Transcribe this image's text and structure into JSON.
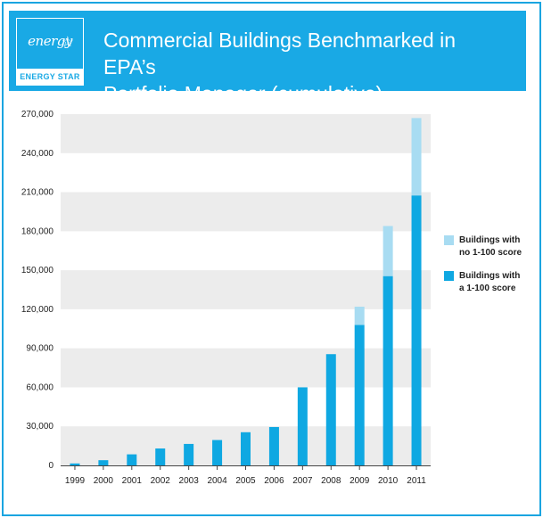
{
  "header": {
    "title_line1": "Commercial Buildings Benchmarked in EPA’s",
    "title_line2": "Portfolio Manager (cumulative)",
    "logo_script": "energy",
    "logo_band": "ENERGY STAR"
  },
  "colors": {
    "frame": "#1aa5e0",
    "header_bg": "#19a9e5",
    "series_scored": "#0fa8e2",
    "series_unscored": "#a8dcf2",
    "band": "#ececec"
  },
  "chart_data": {
    "type": "bar",
    "stacked": true,
    "categories": [
      "1999",
      "2000",
      "2001",
      "2002",
      "2003",
      "2004",
      "2005",
      "2006",
      "2007",
      "2008",
      "2009",
      "2010",
      "2011"
    ],
    "series": [
      {
        "name": "Buildings with a 1-100 score",
        "values": [
          1500,
          4000,
          8500,
          13000,
          16500,
          19500,
          25500,
          29500,
          60000,
          85500,
          108000,
          145500,
          207500
        ]
      },
      {
        "name": "Buildings with no 1-100 score",
        "values": [
          0,
          0,
          0,
          0,
          0,
          0,
          0,
          0,
          0,
          0,
          14000,
          38500,
          59500
        ]
      }
    ],
    "ylim": [
      0,
      270000
    ],
    "yticks": [
      "0",
      "30,000",
      "60,000",
      "90,000",
      "120,000",
      "150,000",
      "180,000",
      "210,000",
      "240,000",
      "270,000"
    ],
    "ytick_values": [
      0,
      30000,
      60000,
      90000,
      120000,
      150000,
      180000,
      210000,
      240000,
      270000
    ],
    "legend": [
      {
        "line1": "Buildings with",
        "line2": "no 1-100 score"
      },
      {
        "line1": "Buildings with",
        "line2": "a 1-100 score"
      }
    ],
    "legend_position": "right",
    "grid": "alternating bands"
  }
}
